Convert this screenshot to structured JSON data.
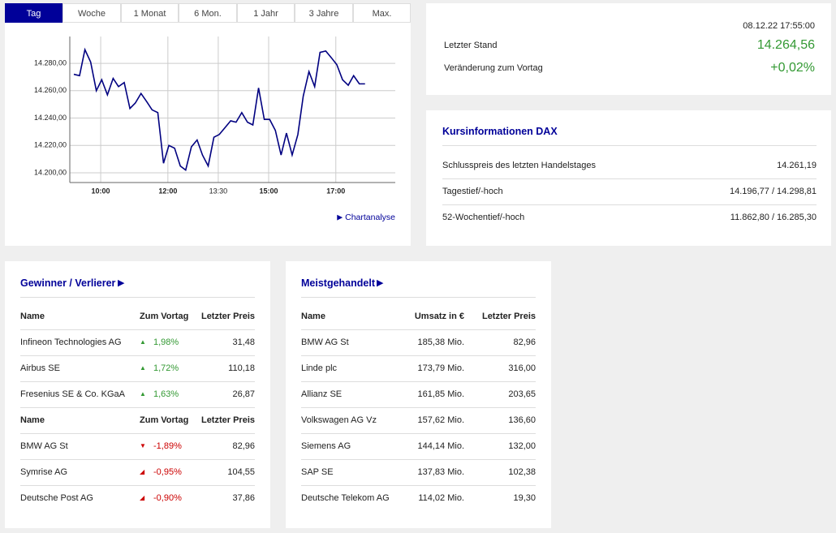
{
  "tabs": [
    "Tag",
    "Woche",
    "1 Monat",
    "6 Mon.",
    "1 Jahr",
    "3 Jahre",
    "Max."
  ],
  "chart_data": {
    "type": "line",
    "x": [
      9.2,
      9.37,
      9.53,
      9.7,
      9.87,
      10.03,
      10.2,
      10.37,
      10.53,
      10.7,
      10.87,
      11.03,
      11.2,
      11.37,
      11.53,
      11.7,
      11.87,
      12.03,
      12.2,
      12.37,
      12.53,
      12.7,
      12.87,
      13.03,
      13.2,
      13.37,
      13.53,
      13.7,
      13.87,
      14.03,
      14.2,
      14.37,
      14.53,
      14.7,
      14.87,
      15.03,
      15.2,
      15.37,
      15.53,
      15.7,
      15.87,
      16.03,
      16.2,
      16.37,
      16.53,
      16.7,
      16.87,
      17.03,
      17.2,
      17.37,
      17.53,
      17.7,
      17.87
    ],
    "series": [
      {
        "color": "#000080",
        "values": [
          14272,
          14271,
          14290,
          14281,
          14260,
          14268,
          14257,
          14269,
          14263,
          14266,
          14247,
          14251,
          14258,
          14252,
          14246,
          14244,
          14207,
          14220,
          14218,
          14205,
          14202,
          14219,
          14224,
          14213,
          14205,
          14226,
          14228,
          14233,
          14238,
          14237,
          14244,
          14237,
          14235,
          14262,
          14239,
          14239,
          14231,
          14213,
          14229,
          14213,
          14228,
          14256,
          14274,
          14263,
          14288,
          14289,
          14284,
          14279,
          14268,
          14264,
          14271,
          14265,
          14265
        ]
      }
    ],
    "xlim": [
      9.08,
      18.77
    ],
    "xticks": [
      {
        "value": 10,
        "label": "10:00"
      },
      {
        "value": 12,
        "label": "12:00"
      },
      {
        "value": 13.5,
        "label": "13:30"
      },
      {
        "value": 15,
        "label": "15:00"
      },
      {
        "value": 17,
        "label": "17:00"
      }
    ],
    "ylim": [
      14192.9,
      14299.6
    ],
    "yticks": [
      {
        "value": 14200,
        "label": "14.200,00"
      },
      {
        "value": 14220,
        "label": "14.220,00"
      },
      {
        "value": 14240,
        "label": "14.240,00"
      },
      {
        "value": 14260,
        "label": "14.260,00"
      },
      {
        "value": 14280,
        "label": "14.280,00"
      }
    ],
    "grid": true
  },
  "chart_link": "Chartanalyse",
  "quote": {
    "timestamp": "08.12.22 17:55:00",
    "rows": [
      [
        "Letzter Stand",
        "14.264,56"
      ],
      [
        "Veränderung zum Vortag",
        "+0,02%"
      ]
    ]
  },
  "info": {
    "title": "Kursinformationen DAX",
    "rows": [
      [
        "Schlusspreis des letzten Handelstages",
        "14.261,19"
      ],
      [
        "Tagestief/-hoch",
        "14.196,77 / 14.298,81"
      ],
      [
        "52-Wochentief/-hoch",
        "11.862,80 / 16.285,30"
      ]
    ]
  },
  "movers": {
    "title": "Gewinner / Verlierer",
    "gainers": {
      "header": [
        "Name",
        "Zum Vortag",
        "Letzter Preis"
      ],
      "rows": [
        [
          "Infineon Technologies AG",
          "1,98%",
          "31,48"
        ],
        [
          "Airbus SE",
          "1,72%",
          "110,18"
        ],
        [
          "Fresenius SE & Co. KGaA",
          "1,63%",
          "26,87"
        ]
      ]
    },
    "losers": {
      "header": [
        "Name",
        "Zum Vortag",
        "Letzter Preis"
      ],
      "rows": [
        [
          "BMW AG St",
          "-1,89%",
          "82,96"
        ],
        [
          "Symrise AG",
          "-0,95%",
          "104,55"
        ],
        [
          "Deutsche Post AG",
          "-0,90%",
          "37,86"
        ]
      ]
    }
  },
  "most_traded": {
    "title": "Meistgehandelt",
    "header": [
      "Name",
      "Umsatz in €",
      "Letzter Preis"
    ],
    "rows": [
      [
        "BMW AG St",
        "185,38 Mio.",
        "82,96"
      ],
      [
        "Linde plc",
        "173,79 Mio.",
        "316,00"
      ],
      [
        "Allianz SE",
        "161,85 Mio.",
        "203,65"
      ],
      [
        "Volkswagen AG Vz",
        "157,62 Mio.",
        "136,60"
      ],
      [
        "Siemens AG",
        "144,14 Mio.",
        "132,00"
      ],
      [
        "SAP SE",
        "137,83 Mio.",
        "102,38"
      ],
      [
        "Deutsche Telekom AG",
        "114,02 Mio.",
        "19,30"
      ]
    ]
  }
}
